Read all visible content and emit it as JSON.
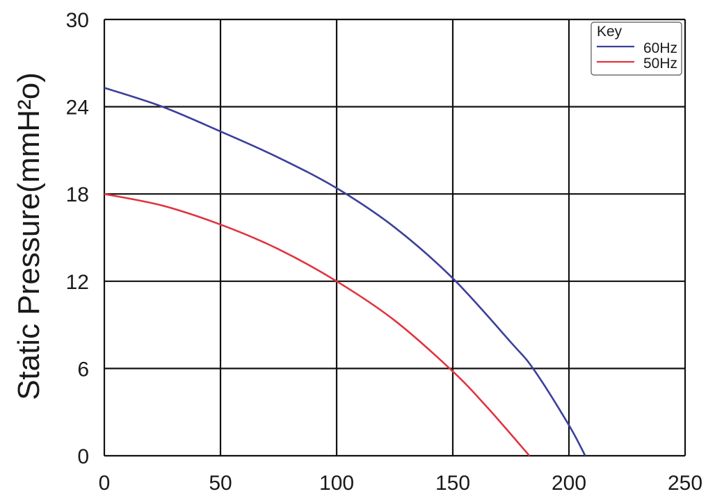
{
  "chart_data": {
    "type": "line",
    "title": "",
    "xlabel": "",
    "ylabel": "Static Pressure(mmH²o)",
    "xlim": [
      0,
      250
    ],
    "ylim": [
      0,
      30
    ],
    "x_ticks": [
      "0",
      "50",
      "100",
      "150",
      "200",
      "250"
    ],
    "y_ticks": [
      "0",
      "6",
      "12",
      "18",
      "24",
      "30"
    ],
    "grid": true,
    "legend": {
      "title": "Key",
      "position": "top-right"
    },
    "series": [
      {
        "name": "60Hz",
        "color": "#3b3f9a",
        "x": [
          0,
          25,
          50,
          75,
          100,
          125,
          150,
          175,
          185,
          200,
          207
        ],
        "y": [
          25.3,
          24.0,
          22.3,
          20.5,
          18.4,
          15.7,
          12.2,
          7.8,
          5.9,
          2.1,
          0
        ]
      },
      {
        "name": "50Hz",
        "color": "#e0343f",
        "x": [
          0,
          25,
          50,
          75,
          100,
          125,
          150,
          165,
          183
        ],
        "y": [
          18.0,
          17.2,
          15.9,
          14.2,
          12.0,
          9.3,
          5.8,
          3.3,
          0
        ]
      }
    ]
  }
}
